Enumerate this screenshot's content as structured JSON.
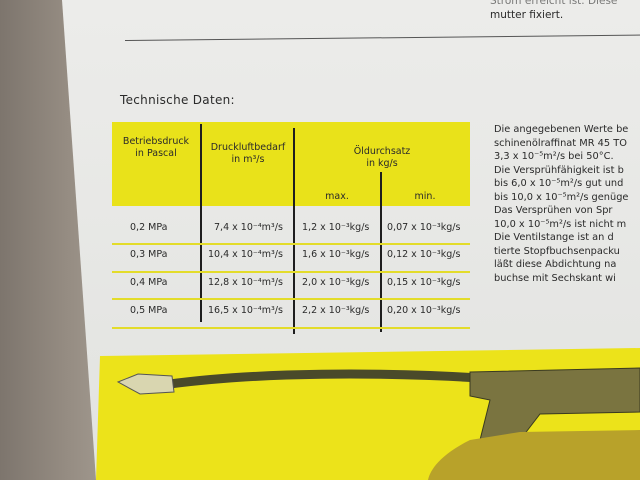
{
  "top_text": {
    "line1": "Strom erreicht ist. Diese",
    "line2": "mutter fixiert."
  },
  "heading": "Technische Daten:",
  "table": {
    "headers": {
      "pressure": [
        "Betriebsdruck",
        "in Pascal"
      ],
      "air": [
        "Druckluftbedarf",
        "in m³/s"
      ],
      "oil": [
        "Öldurchsatz",
        "in kg/s"
      ],
      "max": "max.",
      "min": "min."
    },
    "rows": [
      {
        "pressure": "0,2 MPa",
        "air": "7,4 x 10⁻⁴m³/s",
        "max": "1,2 x 10⁻³kg/s",
        "min": "0,07 x 10⁻³kg/s"
      },
      {
        "pressure": "0,3 MPa",
        "air": "10,4 x 10⁻⁴m³/s",
        "max": "1,6 x 10⁻³kg/s",
        "min": "0,12 x 10⁻³kg/s"
      },
      {
        "pressure": "0,4 MPa",
        "air": "12,8 x 10⁻⁴m³/s",
        "max": "2,0 x 10⁻³kg/s",
        "min": "0,15 x 10⁻³kg/s"
      },
      {
        "pressure": "0,5 MPa",
        "air": "16,5 x 10⁻⁴m³/s",
        "max": "2,2 x 10⁻³kg/s",
        "min": "0,20 x 10⁻³kg/s"
      }
    ]
  },
  "side_text": [
    "Die angegebenen Werte be",
    "schinenölraffinat MR 45 TO",
    "3,3 x 10⁻⁵m²/s bei 50°C.",
    "Die Versprühfähigkeit ist b",
    "bis 6,0 x 10⁻⁵m²/s gut und",
    "bis 10,0 x 10⁻⁵m²/s genüge",
    "Das Versprühen von Spr",
    "10,0 x 10⁻⁵m²/s ist nicht m",
    "Die Ventilstange ist an d",
    "tierte Stopfbuchsenpacku",
    "läßt diese Abdichtung na",
    "buchse mit Sechskant wi"
  ],
  "colors": {
    "accent_yellow": "#e9e21a",
    "paper": "#e6e7e4",
    "ink": "#2a2a2a"
  }
}
